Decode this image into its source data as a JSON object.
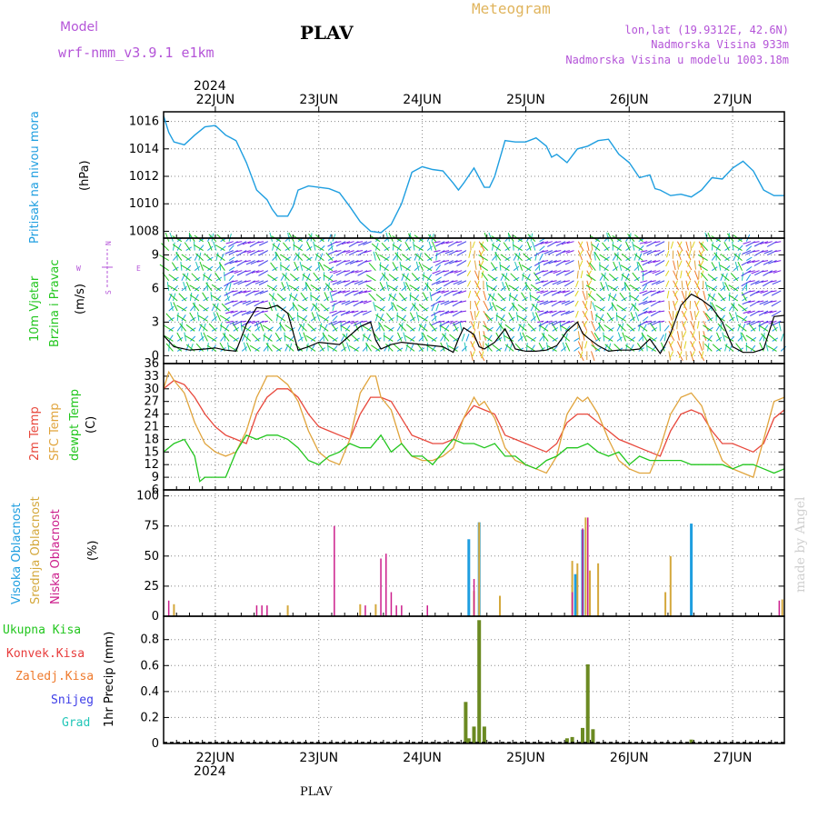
{
  "header": {
    "model_label": "Model",
    "model_name": "wrf-nmm_v3.9.1  e1km",
    "station_title": "PLAV",
    "meteogram_label": "Meteogram",
    "lonlat": "lon,lat (19.9312E, 42.6N)",
    "altitude": "Nadmorska Visina 933m",
    "model_altitude": "Nadmorska Visina u modelu 1003.18m"
  },
  "top_axis": {
    "year": "2024"
  },
  "bottom_axis": {
    "year": "2024",
    "station": "PLAV"
  },
  "watermark": "made by Angel",
  "day_labels": [
    "22JUN",
    "23JUN",
    "24JUN",
    "25JUN",
    "26JUN",
    "27JUN"
  ],
  "panel_labels": {
    "pressure": {
      "lines": [
        "Pritisak na nivou mora"
      ],
      "unit": "(hPa)"
    },
    "wind": {
      "lines": [
        "10m Vjetar",
        "Brzina i Pravac"
      ],
      "unit": "(m/s)",
      "compass_n": "N",
      "compass_s": "S",
      "compass_w": "W",
      "compass_e": "E"
    },
    "temp": {
      "line1": "2m Temp",
      "line2": "SFC Temp",
      "line3": "dewpt Temp",
      "unit": "(C)"
    },
    "cloud": {
      "line1": "Visoka Oblacnost",
      "line2": "Srednja Oblacnost",
      "line3": "Niska Oblacnost",
      "unit": "(%)"
    },
    "precip": {
      "items": [
        "Ukupna Kisa",
        "Konvek.Kisa",
        "Zaledj.Kisa",
        "Snijeg",
        "Grad"
      ],
      "unit": "1hr Precip (mm)"
    }
  },
  "colors": {
    "pressure": "#1e9ee0",
    "t2m": "#e8483c",
    "sfc": "#e0a43c",
    "dew": "#22c61e",
    "cloud_high": "#1e9ee0",
    "cloud_mid": "#d4a83c",
    "cloud_low": "#cc1e8c",
    "precip_total": "#6b8a22",
    "precip_conv": "#cc4422",
    "title_purple": "#b454d8",
    "title_orange": "#e0b45c",
    "precip_labels": [
      "#22c61e",
      "#e83c3c",
      "#ef7a2c",
      "#3c3ce8",
      "#22c6b8"
    ]
  },
  "chart_data": [
    {
      "type": "line",
      "ylabel": "Pritisak na nivou mora (hPa)",
      "ylim": [
        1007.5,
        1016.7
      ],
      "yticks": [
        1008,
        1010,
        1012,
        1014,
        1016
      ],
      "x_days_range": [
        21.5,
        27.5
      ],
      "series": [
        {
          "name": "Pritisak na nivou mora",
          "x": [
            21.5,
            21.55,
            21.6,
            21.7,
            21.8,
            21.9,
            22.0,
            22.1,
            22.2,
            22.3,
            22.4,
            22.5,
            22.55,
            22.6,
            22.7,
            22.75,
            22.8,
            22.9,
            23.0,
            23.1,
            23.2,
            23.3,
            23.4,
            23.5,
            23.6,
            23.7,
            23.8,
            23.9,
            24.0,
            24.1,
            24.2,
            24.3,
            24.35,
            24.4,
            24.5,
            24.6,
            24.65,
            24.7,
            24.8,
            24.9,
            25.0,
            25.1,
            25.2,
            25.25,
            25.3,
            25.4,
            25.5,
            25.6,
            25.7,
            25.8,
            25.9,
            26.0,
            26.1,
            26.2,
            26.25,
            26.3,
            26.4,
            26.5,
            26.6,
            26.7,
            26.8,
            26.9,
            27.0,
            27.1,
            27.2,
            27.3,
            27.4,
            27.45,
            27.5
          ],
          "values": [
            1016.4,
            1015.2,
            1014.5,
            1014.3,
            1015.0,
            1015.6,
            1015.7,
            1015.0,
            1014.6,
            1013.0,
            1011.0,
            1010.3,
            1009.6,
            1009.1,
            1009.1,
            1009.8,
            1011.0,
            1011.3,
            1011.2,
            1011.1,
            1010.8,
            1009.8,
            1008.7,
            1008.0,
            1007.9,
            1008.5,
            1010.0,
            1012.3,
            1012.7,
            1012.5,
            1012.4,
            1011.5,
            1011.0,
            1011.5,
            1012.6,
            1011.2,
            1011.2,
            1012.0,
            1014.6,
            1014.5,
            1014.5,
            1014.8,
            1014.2,
            1013.4,
            1013.6,
            1013.0,
            1014.0,
            1014.2,
            1014.6,
            1014.7,
            1013.6,
            1013.0,
            1011.9,
            1012.1,
            1011.1,
            1011.0,
            1010.6,
            1010.7,
            1010.5,
            1011.0,
            1011.9,
            1011.8,
            1012.6,
            1013.1,
            1012.4,
            1011.0,
            1010.6,
            1010.6,
            1010.6
          ]
        }
      ]
    },
    {
      "type": "line",
      "ylabel": "10m Vjetar Brzina i Pravac (m/s)",
      "ylim": [
        -0.7,
        10.5
      ],
      "yticks": [
        0,
        3,
        6,
        9
      ],
      "series": [
        {
          "name": "10m Vjetar",
          "x": [
            21.5,
            21.6,
            21.75,
            21.9,
            22.0,
            22.1,
            22.2,
            22.3,
            22.4,
            22.5,
            22.6,
            22.7,
            22.8,
            22.9,
            23.0,
            23.2,
            23.4,
            23.5,
            23.55,
            23.6,
            23.7,
            23.8,
            24.0,
            24.2,
            24.3,
            24.35,
            24.4,
            24.5,
            24.55,
            24.6,
            24.7,
            24.8,
            24.9,
            25.0,
            25.1,
            25.2,
            25.3,
            25.4,
            25.5,
            25.55,
            25.6,
            25.7,
            25.8,
            25.9,
            26.0,
            26.1,
            26.2,
            26.3,
            26.35,
            26.4,
            26.5,
            26.6,
            26.7,
            26.8,
            26.9,
            27.0,
            27.1,
            27.2,
            27.3,
            27.4,
            27.5
          ],
          "values": [
            1.8,
            0.8,
            0.5,
            0.6,
            0.7,
            0.5,
            0.4,
            2.8,
            4.3,
            4.2,
            4.5,
            3.8,
            0.5,
            0.8,
            1.2,
            1.0,
            2.6,
            3.0,
            1.4,
            0.6,
            1.0,
            1.2,
            1.0,
            0.8,
            0.3,
            1.5,
            2.5,
            1.9,
            0.8,
            0.6,
            1.2,
            2.4,
            0.6,
            0.4,
            0.4,
            0.5,
            0.9,
            2.2,
            3.0,
            2.0,
            1.6,
            0.9,
            0.4,
            0.5,
            0.5,
            0.6,
            1.5,
            0.2,
            1.0,
            2.0,
            4.5,
            5.5,
            5.0,
            4.3,
            3.0,
            0.8,
            0.3,
            0.3,
            0.6,
            3.5,
            3.6
          ]
        }
      ]
    },
    {
      "type": "line",
      "ylabel": "(C)",
      "ylim": [
        6,
        36
      ],
      "yticks": [
        6,
        9,
        12,
        15,
        18,
        21,
        24,
        27,
        30,
        33,
        36
      ],
      "series": [
        {
          "name": "2m Temp",
          "x": [
            21.5,
            21.6,
            21.7,
            21.8,
            21.9,
            22.0,
            22.1,
            22.2,
            22.3,
            22.4,
            22.5,
            22.6,
            22.7,
            22.8,
            22.9,
            23.0,
            23.1,
            23.2,
            23.3,
            23.4,
            23.5,
            23.6,
            23.7,
            23.8,
            23.9,
            24.0,
            24.1,
            24.2,
            24.3,
            24.4,
            24.5,
            24.6,
            24.7,
            24.8,
            24.9,
            25.0,
            25.1,
            25.2,
            25.3,
            25.4,
            25.5,
            25.6,
            25.7,
            25.8,
            25.9,
            26.0,
            26.1,
            26.2,
            26.3,
            26.4,
            26.5,
            26.6,
            26.7,
            26.8,
            26.9,
            27.0,
            27.1,
            27.2,
            27.3,
            27.4,
            27.5
          ],
          "values": [
            30,
            32,
            31,
            28,
            24,
            21,
            19,
            18,
            17,
            24,
            28,
            30,
            30,
            28,
            24,
            21,
            20,
            19,
            18,
            24,
            28,
            28,
            27,
            23,
            19,
            18,
            17,
            17,
            18,
            23,
            26,
            25,
            24,
            19,
            18,
            17,
            16,
            15,
            17,
            22,
            24,
            24,
            22,
            20,
            18,
            17,
            16,
            15,
            14,
            20,
            24,
            25,
            24,
            20,
            17,
            17,
            16,
            15,
            17,
            23,
            25
          ]
        },
        {
          "name": "SFC Temp",
          "x": [
            21.5,
            21.55,
            21.6,
            21.7,
            21.8,
            21.9,
            22.0,
            22.1,
            22.2,
            22.3,
            22.4,
            22.5,
            22.55,
            22.6,
            22.7,
            22.8,
            22.9,
            23.0,
            23.1,
            23.2,
            23.3,
            23.4,
            23.5,
            23.55,
            23.6,
            23.7,
            23.8,
            23.9,
            24.0,
            24.1,
            24.2,
            24.3,
            24.4,
            24.5,
            24.55,
            24.6,
            24.7,
            24.8,
            24.9,
            25.0,
            25.1,
            25.2,
            25.3,
            25.4,
            25.5,
            25.55,
            25.6,
            25.7,
            25.8,
            25.9,
            26.0,
            26.1,
            26.2,
            26.3,
            26.4,
            26.5,
            26.6,
            26.7,
            26.8,
            26.9,
            27.0,
            27.1,
            27.2,
            27.3,
            27.4,
            27.5
          ],
          "values": [
            30,
            34,
            32,
            29,
            22,
            17,
            15,
            14,
            15,
            20,
            28,
            33,
            33,
            33,
            31,
            27,
            20,
            15,
            13,
            12,
            18,
            29,
            33,
            33,
            28,
            25,
            17,
            14,
            13,
            13,
            14,
            16,
            23,
            28,
            26,
            27,
            23,
            16,
            13,
            12,
            11,
            10,
            14,
            24,
            28,
            27,
            28,
            24,
            18,
            13,
            11,
            10,
            10,
            16,
            24,
            28,
            29,
            26,
            19,
            13,
            11,
            10,
            9,
            18,
            27,
            28
          ]
        },
        {
          "name": "dewpt Temp",
          "x": [
            21.5,
            21.6,
            21.7,
            21.8,
            21.85,
            21.9,
            22.0,
            22.1,
            22.2,
            22.3,
            22.4,
            22.5,
            22.6,
            22.7,
            22.8,
            22.9,
            23.0,
            23.1,
            23.2,
            23.3,
            23.4,
            23.5,
            23.6,
            23.7,
            23.8,
            23.9,
            24.0,
            24.1,
            24.2,
            24.3,
            24.4,
            24.5,
            24.6,
            24.7,
            24.8,
            24.9,
            25.0,
            25.1,
            25.2,
            25.3,
            25.4,
            25.5,
            25.6,
            25.7,
            25.8,
            25.9,
            26.0,
            26.1,
            26.2,
            26.3,
            26.4,
            26.5,
            26.6,
            26.7,
            26.8,
            26.9,
            27.0,
            27.1,
            27.2,
            27.3,
            27.4,
            27.5
          ],
          "values": [
            15,
            17,
            18,
            14,
            8,
            9,
            9,
            9,
            15,
            19,
            18,
            19,
            19,
            18,
            16,
            13,
            12,
            14,
            15,
            17,
            16,
            16,
            19,
            15,
            17,
            14,
            14,
            12,
            15,
            18,
            17,
            17,
            16,
            17,
            14,
            14,
            12,
            11,
            13,
            14,
            16,
            16,
            17,
            15,
            14,
            15,
            12,
            14,
            13,
            13,
            13,
            13,
            12,
            12,
            12,
            12,
            11,
            12,
            12,
            11,
            10,
            11
          ]
        }
      ]
    },
    {
      "type": "bar",
      "ylabel": "(%)",
      "ylim": [
        0,
        105
      ],
      "yticks": [
        0,
        25,
        50,
        75,
        100
      ],
      "series": [
        {
          "name": "Visoka Oblacnost",
          "x": [
            24.45,
            24.55,
            25.48,
            25.55,
            26.6
          ],
          "values": [
            64,
            78,
            35,
            72,
            77
          ]
        },
        {
          "name": "Srednja Oblacnost",
          "x": [
            21.6,
            22.7,
            23.4,
            23.55,
            24.5,
            24.55,
            24.75,
            25.45,
            25.5,
            25.58,
            25.62,
            25.7,
            26.35,
            26.4,
            27.48
          ],
          "values": [
            10,
            9,
            10,
            10,
            21,
            78,
            17,
            46,
            44,
            82,
            38,
            44,
            20,
            50,
            14
          ]
        },
        {
          "name": "Niska Oblacnost",
          "x": [
            21.55,
            22.4,
            22.45,
            22.5,
            23.15,
            23.45,
            23.6,
            23.65,
            23.7,
            23.75,
            23.8,
            24.05,
            24.5,
            25.45,
            25.55,
            25.6,
            27.45
          ],
          "values": [
            13,
            9,
            9,
            9,
            75,
            9,
            48,
            52,
            20,
            9,
            9,
            9,
            31,
            20,
            73,
            82,
            13
          ]
        }
      ]
    },
    {
      "type": "bar",
      "ylabel": "1hr Precip (mm)",
      "ylim": [
        0,
        0.98
      ],
      "yticks": [
        0,
        0.2,
        0.4,
        0.6,
        0.8
      ],
      "series": [
        {
          "name": "Ukupna Kisa",
          "x": [
            24.42,
            24.45,
            24.5,
            24.55,
            24.6,
            25.4,
            25.45,
            25.5,
            25.55,
            25.6,
            25.65,
            26.6
          ],
          "values": [
            0.32,
            0.04,
            0.13,
            0.95,
            0.13,
            0.04,
            0.05,
            0.01,
            0.12,
            0.61,
            0.11,
            0.03
          ]
        },
        {
          "name": "Konvek.Kisa",
          "x": [
            24.55,
            25.55
          ],
          "values": [
            0.95,
            0.61
          ]
        }
      ]
    }
  ]
}
